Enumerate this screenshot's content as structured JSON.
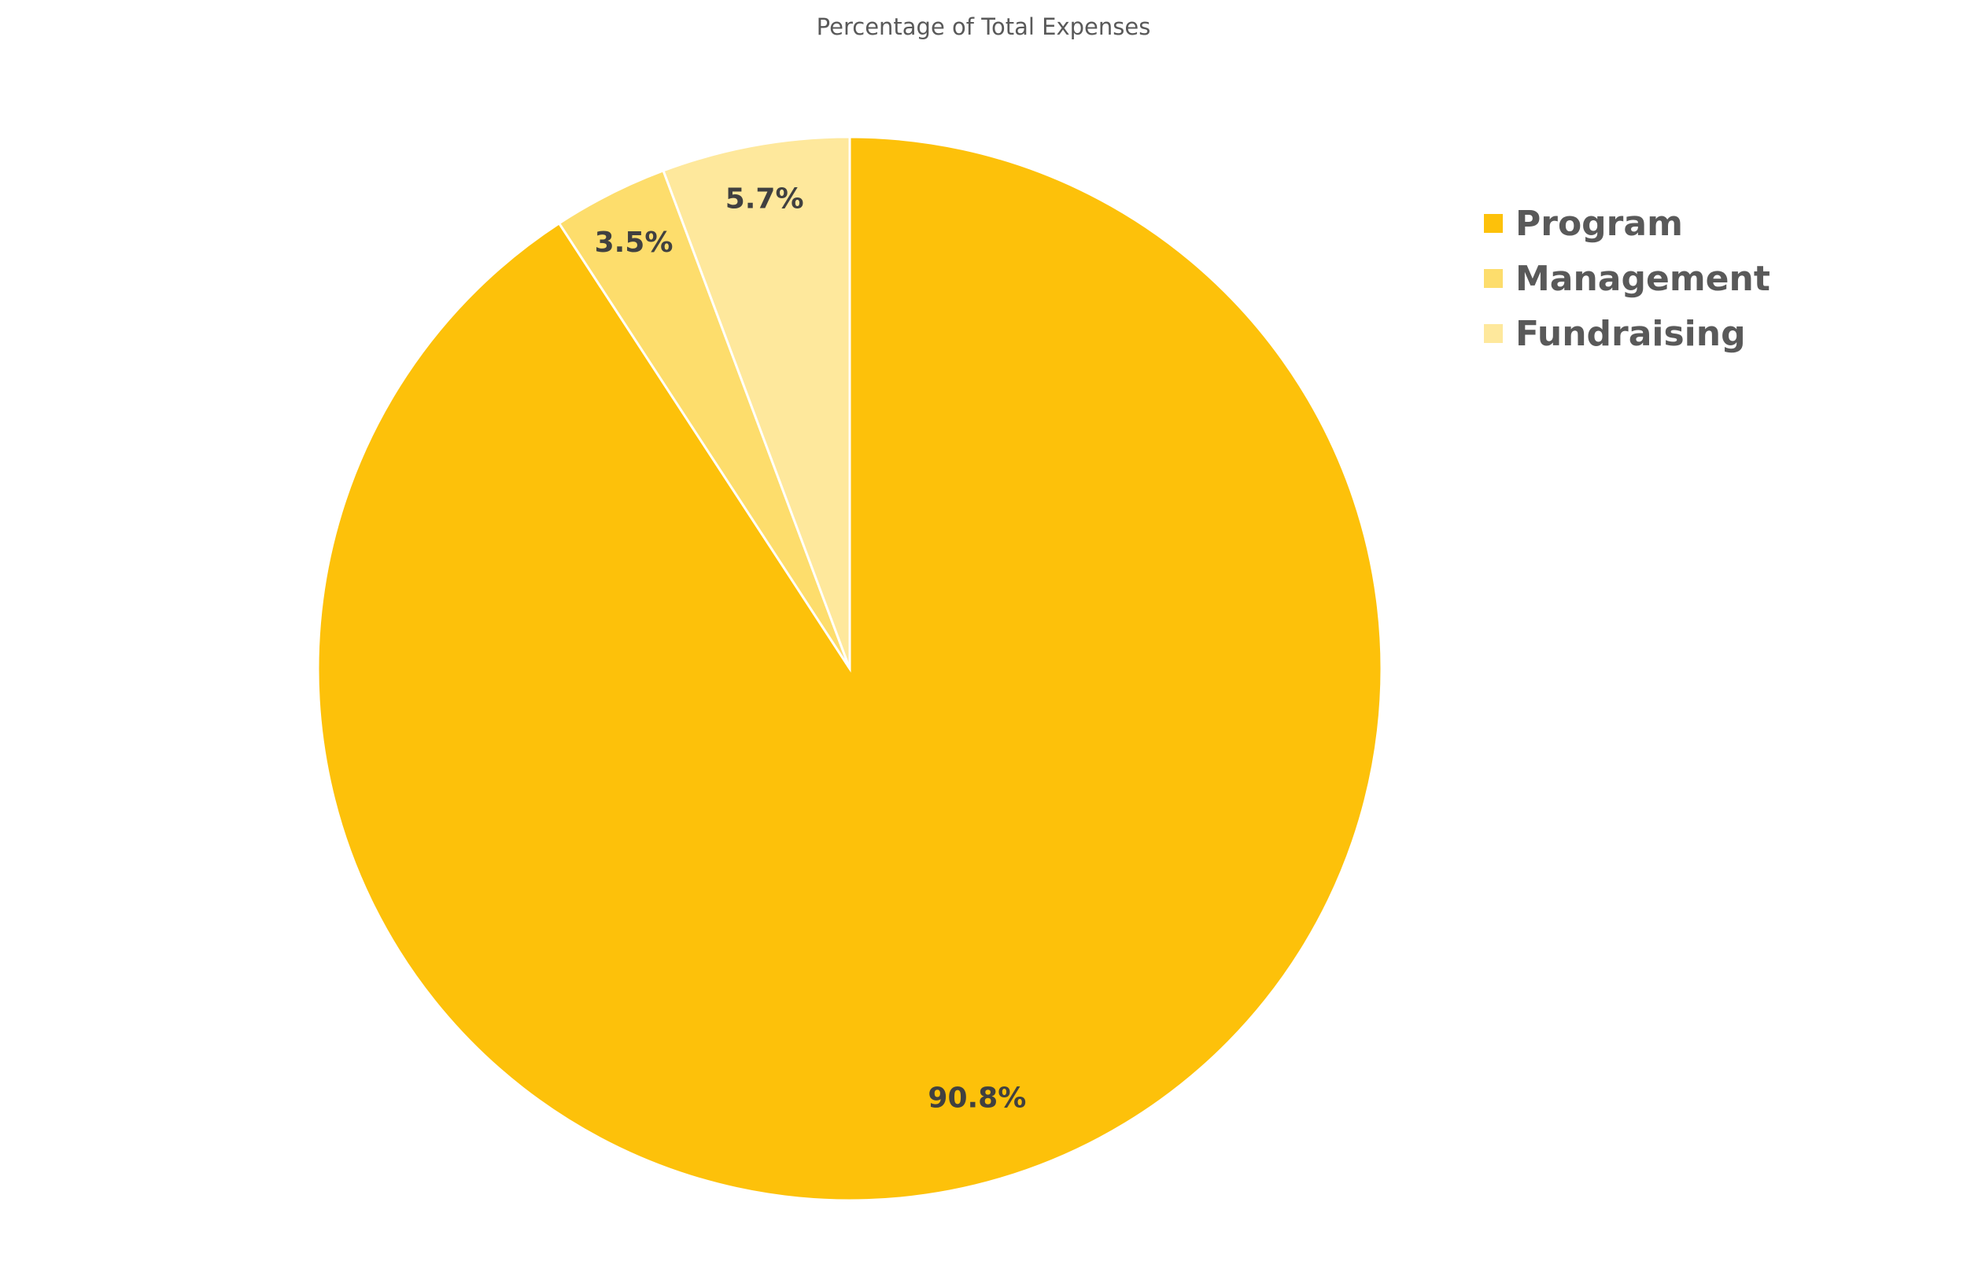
{
  "chart_data": {
    "type": "pie",
    "title": "Percentage of Total Expenses",
    "start_angle": "12 o'clock",
    "direction": "clockwise",
    "legend_position": "right",
    "slices": [
      {
        "label": "Program",
        "value": 90.8,
        "display": "90.8%",
        "color": "#FDC10A"
      },
      {
        "label": "Management",
        "value": 3.5,
        "display": "3.5%",
        "color": "#FDDD6C"
      },
      {
        "label": "Fundraising",
        "value": 5.7,
        "display": "5.7%",
        "color": "#FEE89C"
      }
    ]
  }
}
